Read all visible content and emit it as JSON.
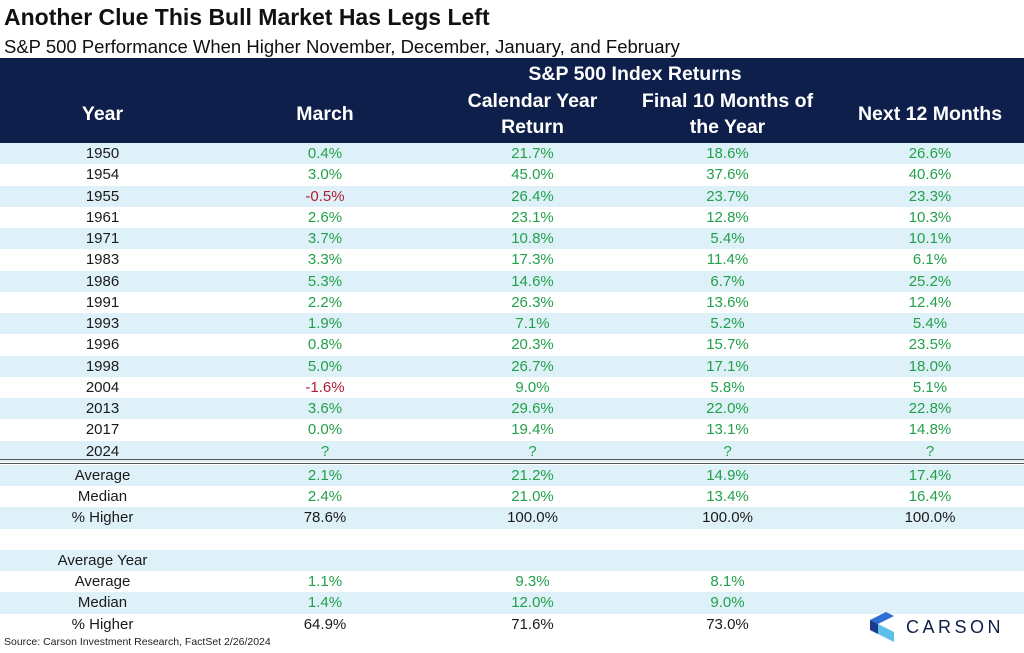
{
  "title": "Another Clue This Bull Market Has Legs Left",
  "subtitle": "S&P 500 Performance When Higher November, December, January, and February",
  "header": {
    "group": "S&P 500 Index Returns",
    "year": "Year",
    "march": "March",
    "cal1": "Calendar Year",
    "cal2": "Return",
    "fin1": "Final 10 Months of",
    "fin2": "the Year",
    "next12": "Next 12 Months"
  },
  "chart_data": {
    "type": "table",
    "columns": [
      "Year",
      "March",
      "Calendar Year Return",
      "Final 10 Months of the Year",
      "Next 12 Months"
    ],
    "rows": [
      [
        "1950",
        "0.4%",
        "21.7%",
        "18.6%",
        "26.6%"
      ],
      [
        "1954",
        "3.0%",
        "45.0%",
        "37.6%",
        "40.6%"
      ],
      [
        "1955",
        "-0.5%",
        "26.4%",
        "23.7%",
        "23.3%"
      ],
      [
        "1961",
        "2.6%",
        "23.1%",
        "12.8%",
        "10.3%"
      ],
      [
        "1971",
        "3.7%",
        "10.8%",
        "5.4%",
        "10.1%"
      ],
      [
        "1983",
        "3.3%",
        "17.3%",
        "11.4%",
        "6.1%"
      ],
      [
        "1986",
        "5.3%",
        "14.6%",
        "6.7%",
        "25.2%"
      ],
      [
        "1991",
        "2.2%",
        "26.3%",
        "13.6%",
        "12.4%"
      ],
      [
        "1993",
        "1.9%",
        "7.1%",
        "5.2%",
        "5.4%"
      ],
      [
        "1996",
        "0.8%",
        "20.3%",
        "15.7%",
        "23.5%"
      ],
      [
        "1998",
        "5.0%",
        "26.7%",
        "17.1%",
        "18.0%"
      ],
      [
        "2004",
        "-1.6%",
        "9.0%",
        "5.8%",
        "5.1%"
      ],
      [
        "2013",
        "3.6%",
        "29.6%",
        "22.0%",
        "22.8%"
      ],
      [
        "2017",
        "0.0%",
        "19.4%",
        "13.1%",
        "14.8%"
      ],
      [
        "2024",
        "?",
        "?",
        "?",
        "?"
      ]
    ],
    "summary": [
      [
        "Average",
        "2.1%",
        "21.2%",
        "14.9%",
        "17.4%"
      ],
      [
        "Median",
        "2.4%",
        "21.0%",
        "13.4%",
        "16.4%"
      ],
      [
        "% Higher",
        "78.6%",
        "100.0%",
        "100.0%",
        "100.0%"
      ]
    ],
    "average_year_label": "Average Year",
    "average_year": [
      [
        "Average",
        "1.1%",
        "9.3%",
        "8.1%",
        ""
      ],
      [
        "Median",
        "1.4%",
        "12.0%",
        "9.0%",
        ""
      ],
      [
        "% Higher",
        "64.9%",
        "71.6%",
        "73.0%",
        ""
      ]
    ],
    "colors": {
      "positive": "#22a04a",
      "negative": "#b01e2e",
      "header": "#0f1f4b",
      "stripe": "#def1f9"
    }
  },
  "source": "Source: Carson Investment Research, FactSet 2/26/2024",
  "logo": {
    "text": "CARSON",
    "icon": "carson-chevron-icon"
  }
}
